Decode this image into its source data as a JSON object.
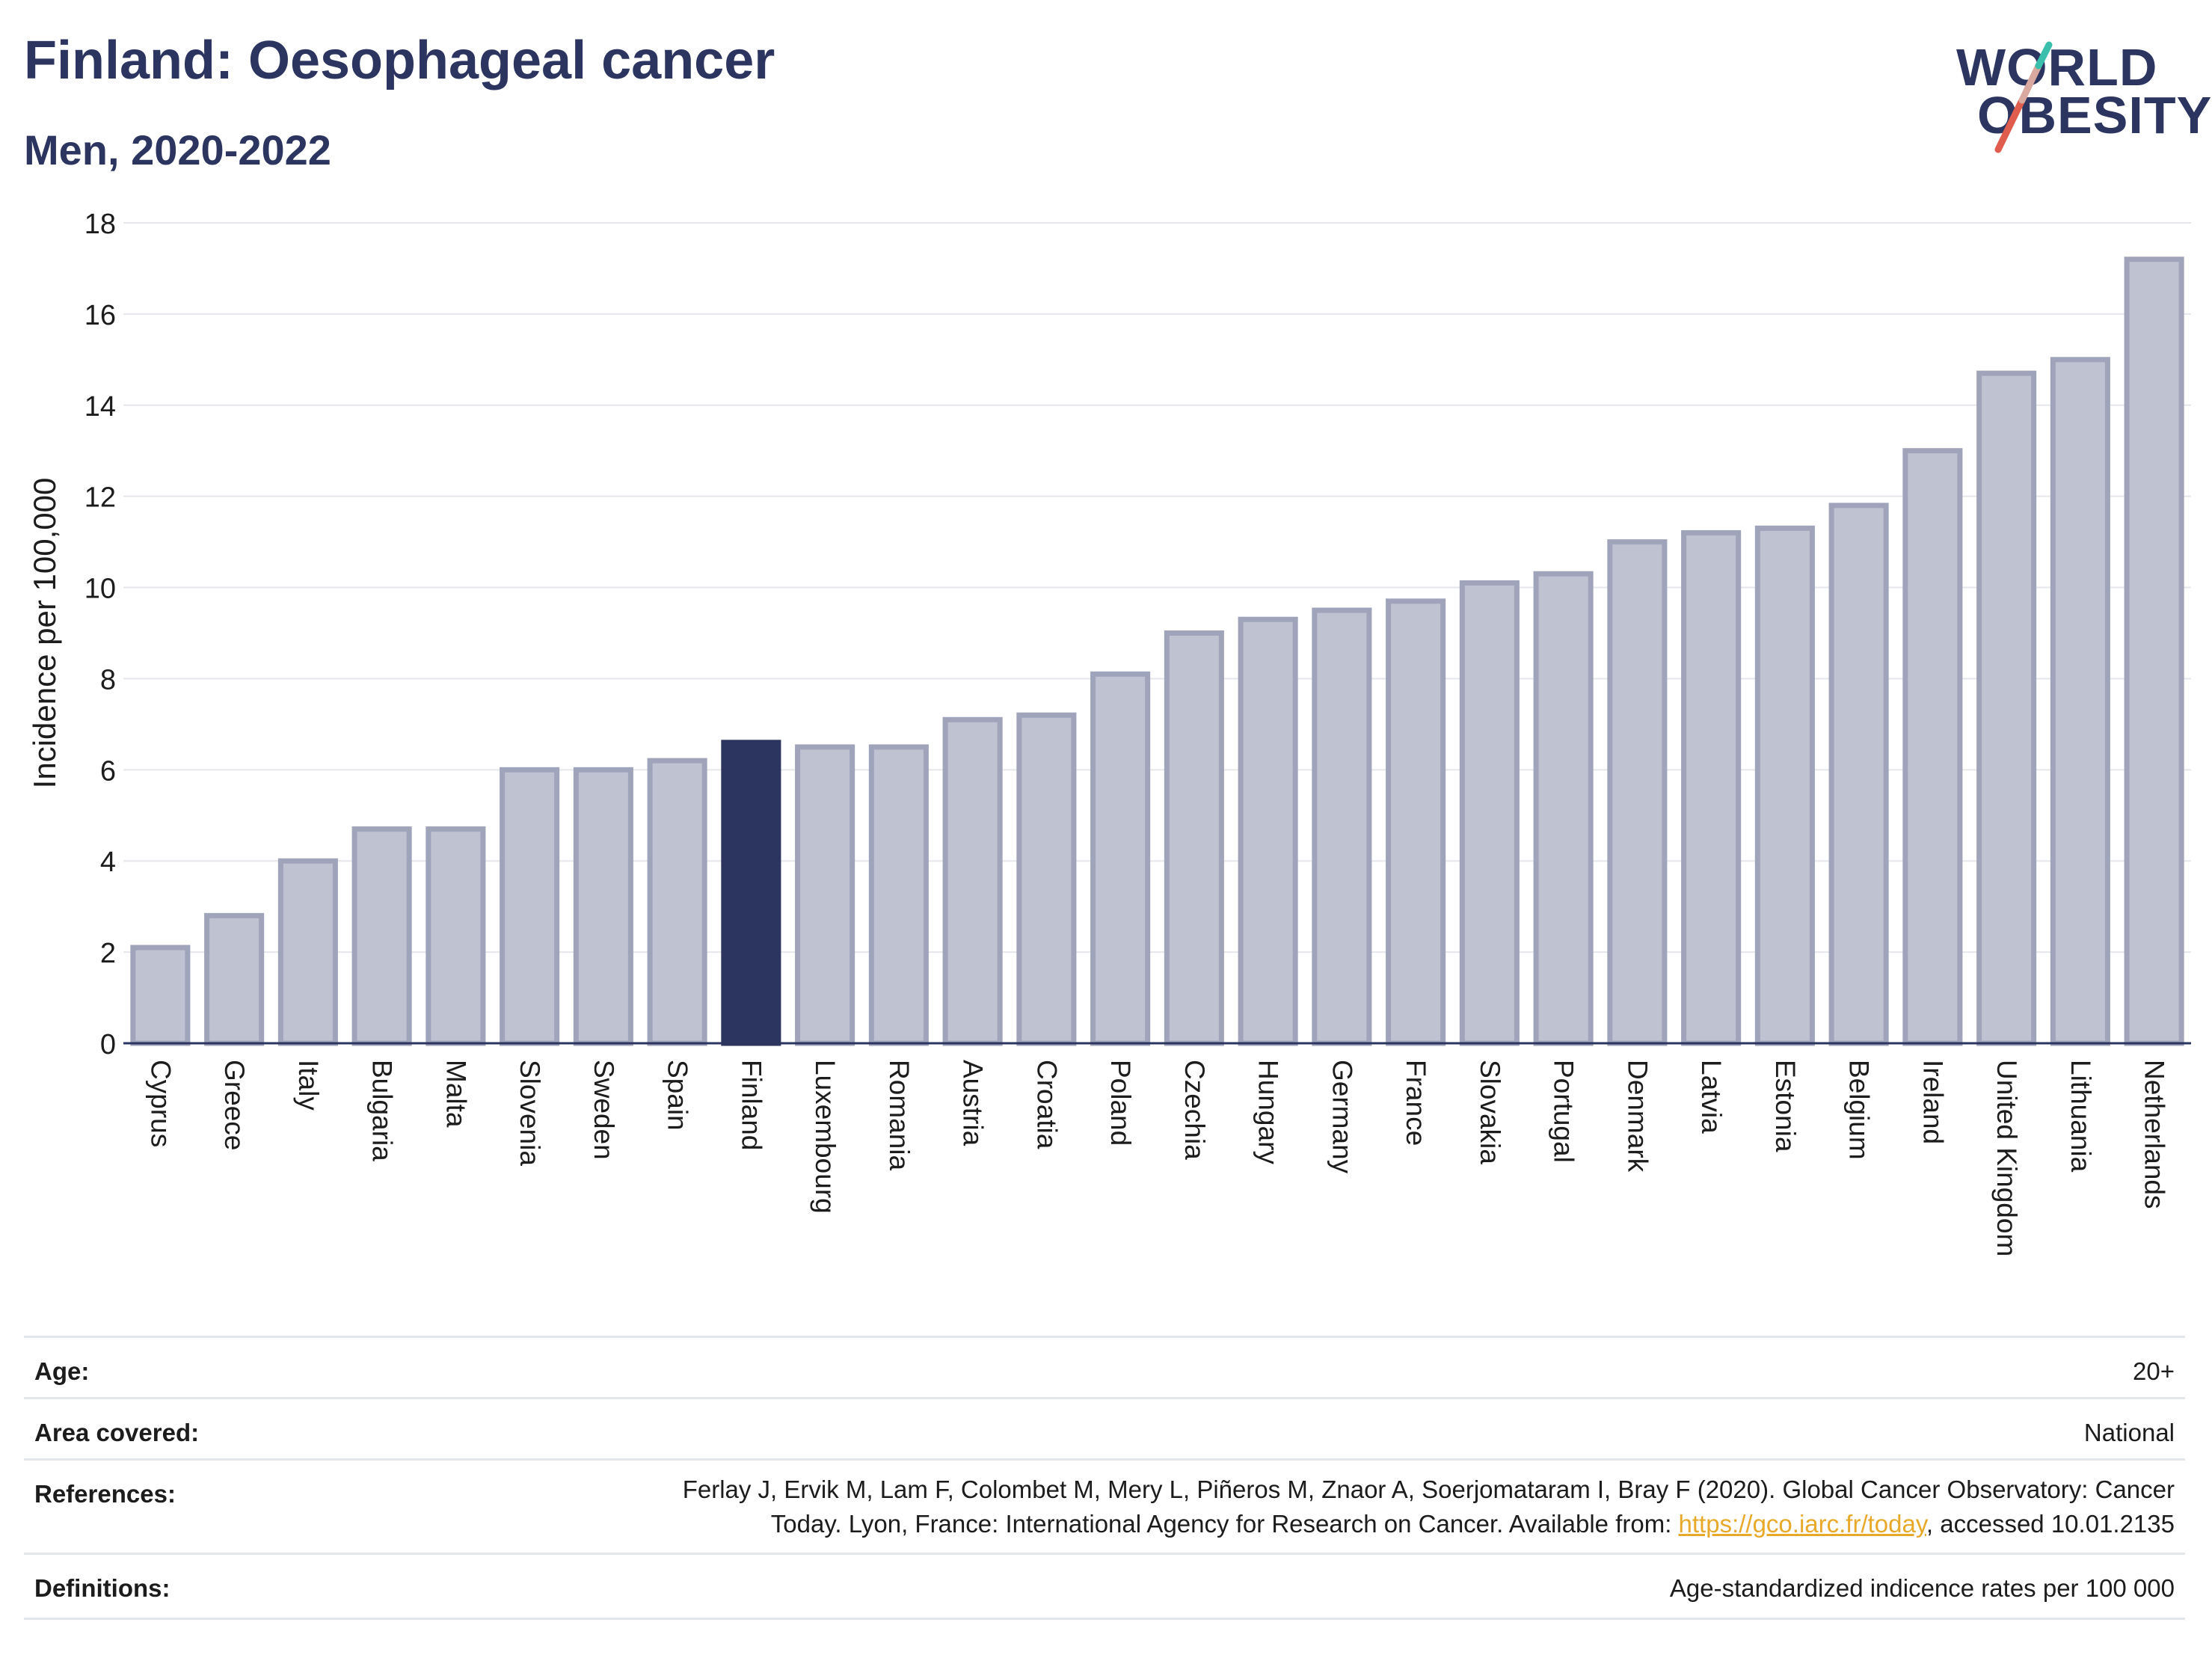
{
  "header": {
    "title": "Finland: Oesophageal cancer",
    "subtitle": "Men, 2020-2022"
  },
  "logo": {
    "line1": "WORLD",
    "line2": "OBESITY",
    "accent_colors": [
      "#e05d4e",
      "#3bbfad"
    ]
  },
  "colors": {
    "highlight": "#2c3560",
    "bar": "#bfc2d0",
    "bar_border": "#9fa4bb",
    "grid": "#e6e7ec"
  },
  "chart_data": {
    "type": "bar",
    "ylabel": "Incidence per 100,000",
    "ylim": [
      0,
      18
    ],
    "yticks": [
      0,
      2,
      4,
      6,
      8,
      10,
      12,
      14,
      16,
      18
    ],
    "grid": true,
    "highlight": "Finland",
    "categories": [
      "Cyprus",
      "Greece",
      "Italy",
      "Bulgaria",
      "Malta",
      "Slovenia",
      "Sweden",
      "Spain",
      "Finland",
      "Luxembourg",
      "Romania",
      "Austria",
      "Croatia",
      "Poland",
      "Czechia",
      "Hungary",
      "Germany",
      "France",
      "Slovakia",
      "Portugal",
      "Denmark",
      "Latvia",
      "Estonia",
      "Belgium",
      "Ireland",
      "United Kingdom",
      "Lithuania",
      "Netherlands"
    ],
    "values": [
      2.1,
      2.8,
      4.0,
      4.7,
      4.7,
      6.0,
      6.0,
      6.2,
      6.6,
      6.5,
      6.5,
      7.1,
      7.2,
      8.1,
      9.0,
      9.3,
      9.5,
      9.7,
      10.1,
      10.3,
      11.0,
      11.2,
      11.3,
      11.8,
      13.0,
      14.7,
      15.0,
      17.2
    ]
  },
  "metadata": {
    "age_label": "Age:",
    "age_value": "20+",
    "area_label": "Area covered:",
    "area_value": "National",
    "references_label": "References:",
    "references_text_1": "Ferlay J, Ervik M, Lam F, Colombet M, Mery L, Piñeros M, Znaor A, Soerjomataram I, Bray F (2020). Global Cancer Observatory: Cancer",
    "references_text_2": "Today. Lyon, France: International Agency for Research on Cancer. Available from: ",
    "references_link": "https://gco.iarc.fr/today",
    "references_text_3": ", accessed 10.01.2135",
    "definitions_label": "Definitions:",
    "definitions_value": "Age-standardized indicence rates per 100 000"
  }
}
